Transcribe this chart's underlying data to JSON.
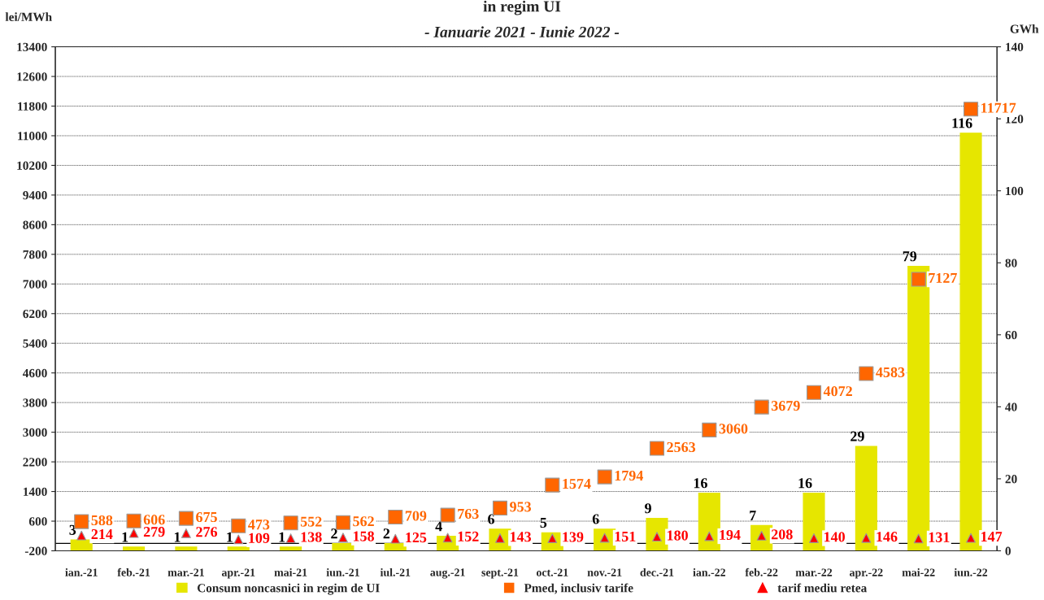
{
  "chart_data": {
    "type": "bar",
    "title": "in regim UI",
    "subtitle": "- Ianuarie 2021 - Iunie 2022 -",
    "ylabel": "lei/MWh",
    "y2label": "GWh",
    "categories": [
      "ian.-21",
      "feb.-21",
      "mar.-21",
      "apr.-21",
      "mai-21",
      "iun.-21",
      "iul.-21",
      "aug.-21",
      "sept.-21",
      "oct.-21",
      "nov.-21",
      "dec.-21",
      "ian.-22",
      "feb.-22",
      "mar.-22",
      "apr.-22",
      "mai-22",
      "iun.-22"
    ],
    "series": [
      {
        "name": "Consum noncasnici in regim de UI",
        "axis": "y2",
        "color": "#e6e600",
        "values": [
          3,
          1,
          1,
          1,
          1,
          2,
          2,
          4,
          6,
          5,
          6,
          9,
          16,
          7,
          16,
          29,
          79,
          116
        ]
      },
      {
        "name": "Pmed, inclusiv tarife",
        "type": "scatter",
        "marker": "square",
        "color": "#ff6600",
        "values": [
          588,
          606,
          675,
          473,
          552,
          562,
          709,
          763,
          953,
          1574,
          1794,
          2563,
          3060,
          3679,
          4072,
          4583,
          7127,
          11717
        ]
      },
      {
        "name": "tarif mediu retea",
        "type": "scatter",
        "marker": "triangle",
        "color": "#ff0000",
        "values": [
          214,
          279,
          276,
          109,
          138,
          158,
          125,
          152,
          143,
          139,
          151,
          180,
          194,
          208,
          140,
          146,
          131,
          147
        ]
      }
    ],
    "ylim": [
      -200,
      13400
    ],
    "yticks": [
      -200,
      600,
      1400,
      2200,
      3000,
      3800,
      4600,
      5400,
      6200,
      7000,
      7800,
      8600,
      9400,
      10200,
      11000,
      11800,
      12600,
      13400
    ],
    "y2lim": [
      0,
      140
    ],
    "y2ticks": [
      0,
      20,
      40,
      60,
      80,
      100,
      120,
      140
    ],
    "ref_lines": [
      {
        "axis": "y",
        "value": 0
      }
    ],
    "grid": "y",
    "legend": "bottom",
    "data_labels": true
  }
}
